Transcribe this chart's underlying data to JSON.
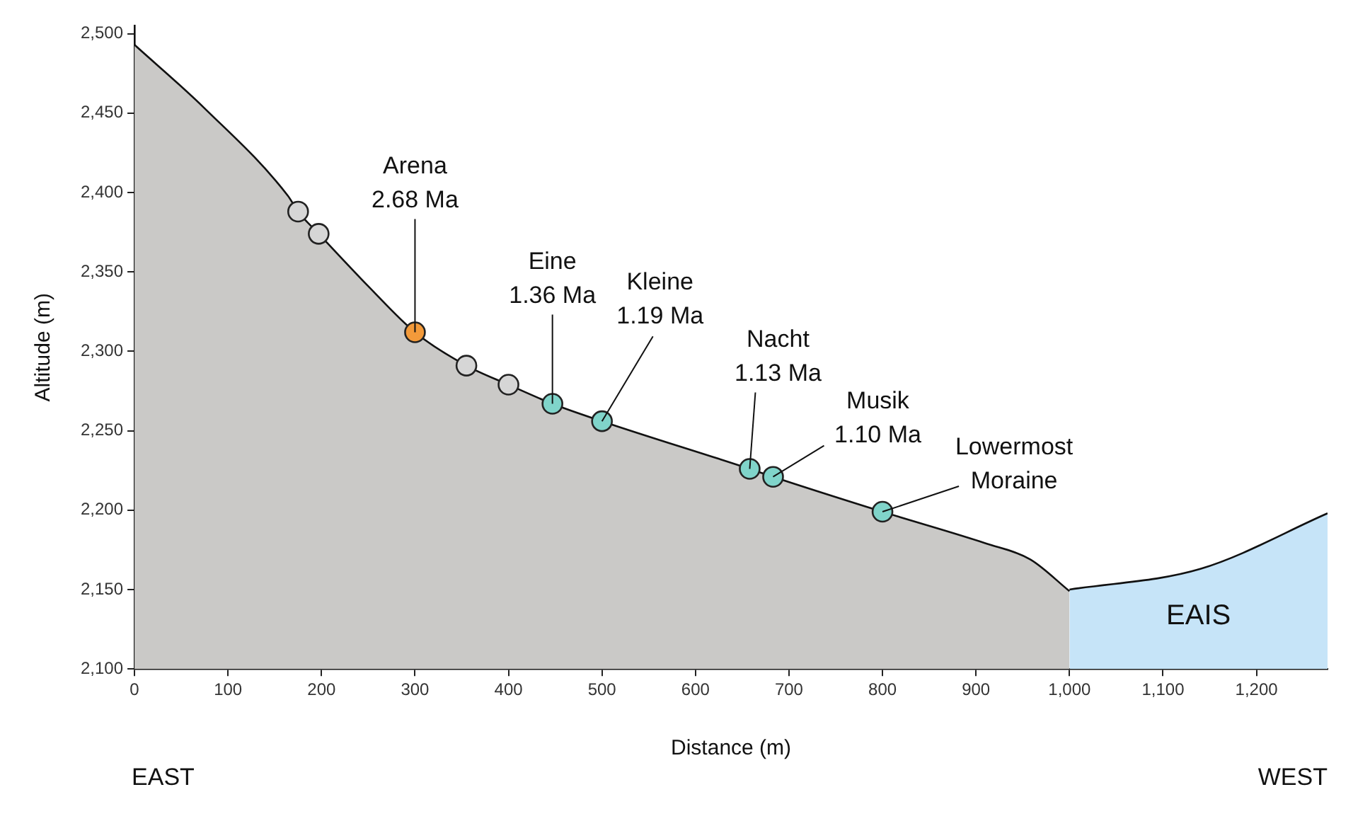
{
  "chart_data": {
    "type": "area",
    "xlabel": "Distance (m)",
    "ylabel": "Altitude (m)",
    "xlim": [
      0,
      1276
    ],
    "ylim": [
      2100,
      2505
    ],
    "xticks": [
      0,
      100,
      200,
      300,
      400,
      500,
      600,
      700,
      800,
      900,
      {
        "value": 1000,
        "label": "1,000"
      },
      {
        "value": 1100,
        "label": "1,100"
      },
      {
        "value": 1200,
        "label": "1,200"
      }
    ],
    "yticks": [
      {
        "value": 2100,
        "label": "2,100"
      },
      {
        "value": 2150,
        "label": "2,150"
      },
      {
        "value": 2200,
        "label": "2,200"
      },
      {
        "value": 2250,
        "label": "2,250"
      },
      {
        "value": 2300,
        "label": "2,300"
      },
      {
        "value": 2350,
        "label": "2,350"
      },
      {
        "value": 2400,
        "label": "2,400"
      },
      {
        "value": 2450,
        "label": "2,450"
      },
      {
        "value": 2500,
        "label": "2,500"
      }
    ],
    "grid": false,
    "legend": false,
    "series": [
      {
        "color": "#cac9c7",
        "x": [
          0,
          75,
          164,
          175,
          197,
          250,
          300,
          355,
          400,
          447,
          500,
          658,
          683,
          800,
          911,
          958,
          1000
        ],
        "values": [
          2493,
          2453,
          2398,
          2388,
          2374,
          2341,
          2312,
          2291,
          2279,
          2267,
          2256,
          2226,
          2221,
          2199,
          2179,
          2169,
          2149
        ]
      },
      {
        "color": "#c6e4f8",
        "x": [
          1000,
          1140,
          1276
        ],
        "values": [
          2150,
          2163,
          2198
        ]
      },
      {
        "type": "scatter",
        "marker": "circle",
        "color": "#d6d6d6",
        "x": [
          175,
          197,
          355,
          400
        ],
        "values": [
          2388,
          2374,
          2291,
          2279
        ]
      },
      {
        "type": "scatter",
        "marker": "circle",
        "color": "#f39a3a",
        "x": [
          300
        ],
        "values": [
          2312
        ]
      },
      {
        "type": "scatter",
        "marker": "circle",
        "color": "#80d4ca",
        "x": [
          447,
          500,
          658,
          683,
          800
        ],
        "values": [
          2267,
          2256,
          2226,
          2221,
          2199
        ]
      }
    ],
    "annotations": [
      {
        "text": "Arena\n2.68 Ma",
        "x": 300,
        "y": 2312
      },
      {
        "text": "Eine\n1.36 Ma",
        "x": 447,
        "y": 2267
      },
      {
        "text": "Kleine\n1.19 Ma",
        "x": 500,
        "y": 2256
      },
      {
        "text": "Nacht\n1.13 Ma",
        "x": 658,
        "y": 2226
      },
      {
        "text": "Musik\n1.10 Ma",
        "x": 683,
        "y": 2221
      },
      {
        "text": "Lowermost\nMoraine",
        "x": 800,
        "y": 2199
      },
      "EAIS",
      "EAST",
      "WEST"
    ]
  }
}
